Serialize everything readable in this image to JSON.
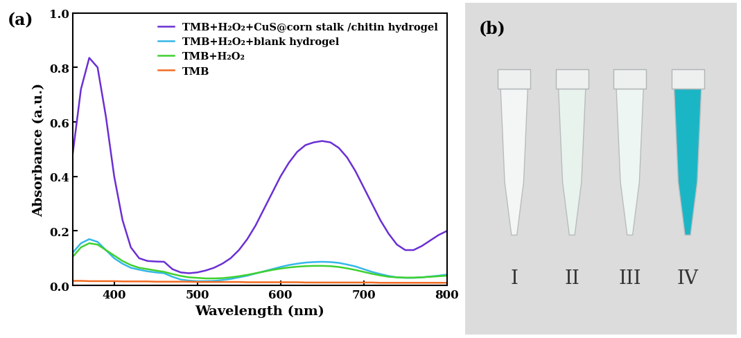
{
  "chart_data": {
    "type": "line",
    "title": "(a)",
    "x_label": "Wavelength (nm)",
    "y_label": "Absorbance (a.u.)",
    "x": [
      350,
      360,
      370,
      380,
      390,
      400,
      410,
      420,
      430,
      440,
      450,
      460,
      470,
      480,
      490,
      500,
      510,
      520,
      530,
      540,
      550,
      560,
      570,
      580,
      590,
      600,
      610,
      620,
      630,
      640,
      650,
      660,
      670,
      680,
      690,
      700,
      710,
      720,
      730,
      740,
      750,
      760,
      770,
      780,
      790,
      800
    ],
    "series": [
      {
        "name": "TMB+H₂O₂+CuS@corn stalk /chitin hydrogel",
        "color": "#6a2fd4",
        "values": [
          0.48,
          0.72,
          0.835,
          0.8,
          0.62,
          0.4,
          0.24,
          0.14,
          0.1,
          0.09,
          0.088,
          0.087,
          0.06,
          0.048,
          0.045,
          0.048,
          0.055,
          0.065,
          0.08,
          0.1,
          0.13,
          0.17,
          0.22,
          0.28,
          0.34,
          0.4,
          0.45,
          0.49,
          0.515,
          0.525,
          0.53,
          0.525,
          0.505,
          0.47,
          0.42,
          0.36,
          0.3,
          0.24,
          0.19,
          0.15,
          0.13,
          0.13,
          0.145,
          0.165,
          0.185,
          0.2
        ]
      },
      {
        "name": "TMB+H₂O₂+blank hydrogel",
        "color": "#35b7e8",
        "values": [
          0.12,
          0.155,
          0.17,
          0.16,
          0.13,
          0.1,
          0.08,
          0.065,
          0.058,
          0.052,
          0.048,
          0.045,
          0.032,
          0.022,
          0.018,
          0.016,
          0.016,
          0.017,
          0.02,
          0.024,
          0.03,
          0.036,
          0.044,
          0.052,
          0.06,
          0.068,
          0.075,
          0.08,
          0.084,
          0.086,
          0.087,
          0.086,
          0.083,
          0.077,
          0.07,
          0.06,
          0.05,
          0.042,
          0.035,
          0.03,
          0.028,
          0.028,
          0.03,
          0.033,
          0.036,
          0.04
        ]
      },
      {
        "name": "TMB+H₂O₂",
        "color": "#3ed12f",
        "values": [
          0.105,
          0.14,
          0.155,
          0.15,
          0.13,
          0.11,
          0.09,
          0.075,
          0.065,
          0.06,
          0.055,
          0.05,
          0.042,
          0.035,
          0.03,
          0.028,
          0.026,
          0.026,
          0.027,
          0.03,
          0.034,
          0.039,
          0.045,
          0.051,
          0.057,
          0.062,
          0.066,
          0.069,
          0.071,
          0.072,
          0.072,
          0.071,
          0.068,
          0.063,
          0.057,
          0.05,
          0.043,
          0.037,
          0.032,
          0.03,
          0.029,
          0.029,
          0.03,
          0.032,
          0.034,
          0.036
        ]
      },
      {
        "name": "TMB",
        "color": "#f26b22",
        "values": [
          0.017,
          0.017,
          0.016,
          0.016,
          0.016,
          0.016,
          0.015,
          0.015,
          0.015,
          0.015,
          0.014,
          0.014,
          0.014,
          0.014,
          0.014,
          0.013,
          0.013,
          0.013,
          0.013,
          0.013,
          0.013,
          0.012,
          0.012,
          0.012,
          0.012,
          0.012,
          0.012,
          0.012,
          0.011,
          0.011,
          0.011,
          0.011,
          0.011,
          0.011,
          0.011,
          0.011,
          0.011,
          0.01,
          0.01,
          0.01,
          0.01,
          0.01,
          0.01,
          0.01,
          0.01,
          0.01
        ]
      }
    ],
    "xlim": [
      350,
      800
    ],
    "xticks": [
      400,
      500,
      600,
      700,
      800
    ],
    "ylim": [
      0,
      1.0
    ],
    "yticks": [
      {
        "value": 0,
        "label": "0.0"
      },
      {
        "value": 0.2,
        "label": "0.2"
      },
      {
        "value": 0.4,
        "label": "0.4"
      },
      {
        "value": 0.6,
        "label": "0.6"
      },
      {
        "value": 0.8,
        "label": "0.8"
      },
      {
        "value": 1.0,
        "label": "1.0"
      }
    ],
    "legend": "upper right",
    "grid": false
  },
  "photo": {
    "panel_label": "(b)",
    "labels": [
      "I",
      "II",
      "III",
      "IV"
    ],
    "colors": [
      "#f4f6f6",
      "#e8f3ee",
      "#eef6f3",
      "#1bb6c6"
    ]
  }
}
